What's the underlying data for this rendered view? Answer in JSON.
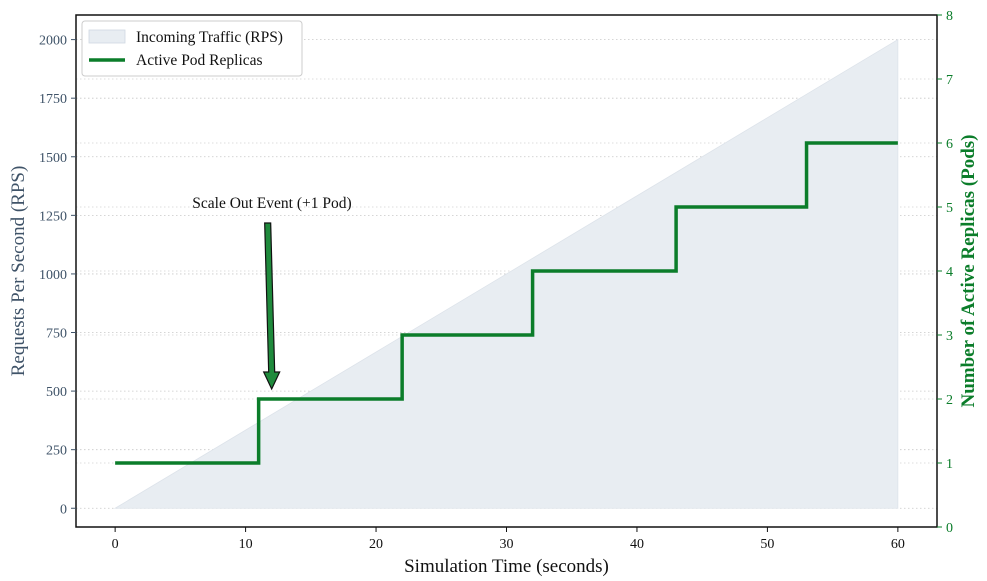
{
  "chart_data": {
    "type": "area",
    "xlabel": "Simulation Time (seconds)",
    "ylabel_left": "Requests Per Second (RPS)",
    "ylabel_right": "Number of Active Replicas (Pods)",
    "xlim": [
      -3,
      63
    ],
    "ylim_left": [
      -80,
      2105
    ],
    "ylim_right": [
      0,
      8
    ],
    "x_ticks": [
      0,
      10,
      20,
      30,
      40,
      50,
      60
    ],
    "y_left_ticks": [
      0,
      250,
      500,
      750,
      1000,
      1250,
      1500,
      1750,
      2000
    ],
    "y_right_ticks": [
      0,
      1,
      2,
      3,
      4,
      5,
      6,
      7,
      8
    ],
    "grid": "horizontal dotted",
    "legend_position": "top-left",
    "series": [
      {
        "name": "Incoming Traffic (RPS)",
        "type": "area",
        "axis": "left",
        "x": [
          0,
          60
        ],
        "y": [
          0,
          2000
        ]
      },
      {
        "name": "Active Pod Replicas",
        "type": "step",
        "axis": "right",
        "x": [
          0,
          11,
          22,
          32,
          43,
          53,
          60
        ],
        "y": [
          1,
          2,
          3,
          4,
          5,
          6,
          6
        ]
      }
    ],
    "annotation": {
      "text": "Scale Out Event (+1 Pod)",
      "arrow_to": {
        "x": 12,
        "y": 2
      }
    }
  },
  "colors": {
    "area_fill": "#e8edf2",
    "step_line": "#0b7d2a",
    "left_axis": "#3f5368",
    "right_axis": "#0b7d2a",
    "arrow_fill": "#1f8a3c"
  }
}
